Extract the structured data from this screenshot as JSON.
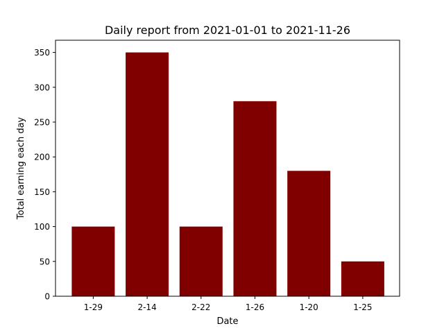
{
  "chart_data": {
    "type": "bar",
    "title": "Daily report from 2021-01-01 to 2021-11-26",
    "xlabel": "Date",
    "ylabel": "Total earning each day",
    "categories": [
      "1-29",
      "2-14",
      "2-22",
      "1-26",
      "1-20",
      "1-25"
    ],
    "values": [
      100,
      350,
      100,
      280,
      180,
      50
    ],
    "ylim": [
      0,
      367.5
    ],
    "yticks": [
      0,
      50,
      100,
      150,
      200,
      250,
      300,
      350
    ],
    "bar_color": "#800000",
    "grid": false,
    "legend": "none"
  }
}
